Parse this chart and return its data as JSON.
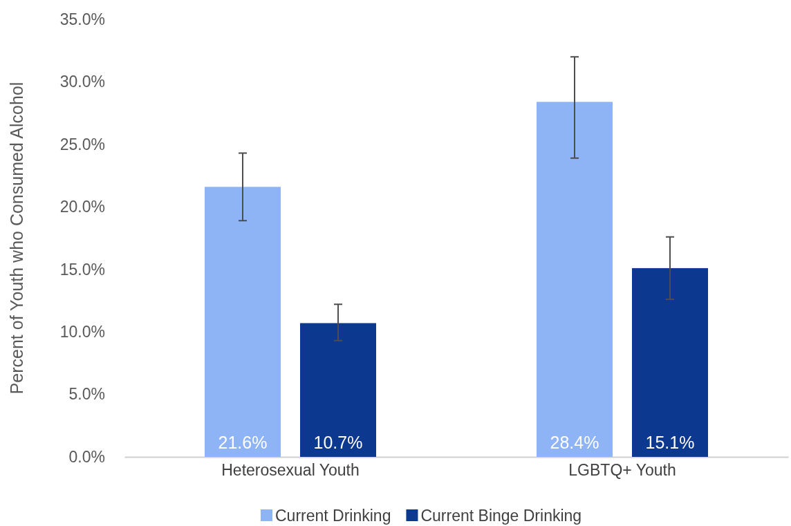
{
  "chart_data": {
    "type": "bar",
    "ylabel": "Percent of Youth who Consumed Alcohol",
    "categories": [
      "Heterosexual Youth",
      "LGBTQ+ Youth"
    ],
    "series": [
      {
        "name": "Current Drinking",
        "color": "#8fb4f5",
        "values": [
          21.6,
          28.4
        ],
        "errors": [
          [
            18.9,
            24.3
          ],
          [
            23.9,
            32.0
          ]
        ],
        "value_labels": [
          "21.6%",
          "28.4%"
        ]
      },
      {
        "name": "Current Binge Drinking",
        "color": "#0c3890",
        "values": [
          10.7,
          15.1
        ],
        "errors": [
          [
            9.3,
            12.2
          ],
          [
            12.6,
            17.6
          ]
        ],
        "value_labels": [
          "10.7%",
          "15.1%"
        ]
      }
    ],
    "ylim": [
      0,
      35
    ],
    "yticks": [
      {
        "value": 0,
        "label": "0.0%"
      },
      {
        "value": 5,
        "label": "5.0%"
      },
      {
        "value": 10,
        "label": "10.0%"
      },
      {
        "value": 15,
        "label": "15.0%"
      },
      {
        "value": 20,
        "label": "20.0%"
      },
      {
        "value": 25,
        "label": "25.0%"
      },
      {
        "value": 30,
        "label": "30.0%"
      },
      {
        "value": 35,
        "label": "35.0%"
      }
    ],
    "grid": false,
    "legend": "bottom"
  }
}
